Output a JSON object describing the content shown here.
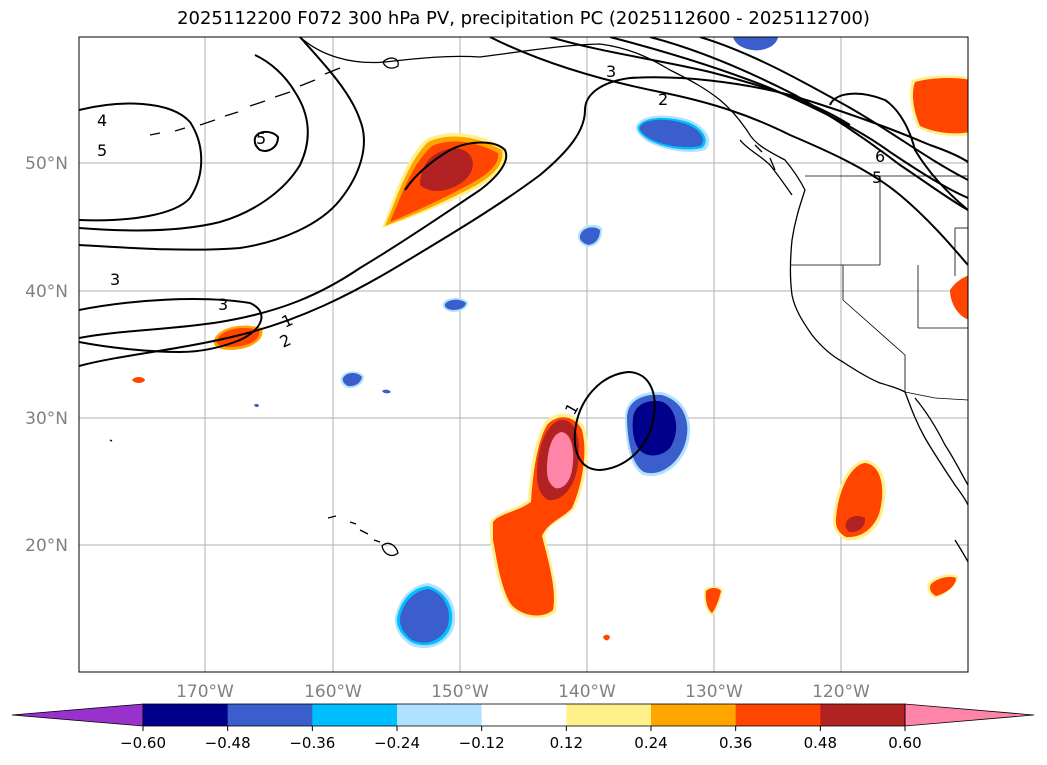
{
  "title": "2025112200 F072 300 hPa PV, precipitation PC (2025112600 - 2025112700)",
  "lat_labels": [
    "50°N",
    "40°N",
    "30°N",
    "20°N"
  ],
  "lon_labels": [
    "170°W",
    "160°W",
    "150°W",
    "140°W",
    "130°W",
    "120°W"
  ],
  "contour_levels": {
    "c1a": "1",
    "c1b": "1",
    "c2a": "2",
    "c2b": "2",
    "c3a": "3",
    "c3b": "3",
    "c3c": "3",
    "c4": "4",
    "c5a": "5",
    "c5b": "5",
    "c5c": "5",
    "c6": "6"
  },
  "colorbar": {
    "tick_labels": [
      "−0.60",
      "−0.48",
      "−0.36",
      "−0.24",
      "−0.12",
      "0.12",
      "0.24",
      "0.36",
      "0.48",
      "0.60"
    ],
    "colors": [
      "#9932cc",
      "#00008b",
      "#3a5fcd",
      "#00bfff",
      "#b0e2ff",
      "#ffffff",
      "#fff08c",
      "#ffa500",
      "#ff4500",
      "#b22222",
      "#ff85a8"
    ]
  }
}
